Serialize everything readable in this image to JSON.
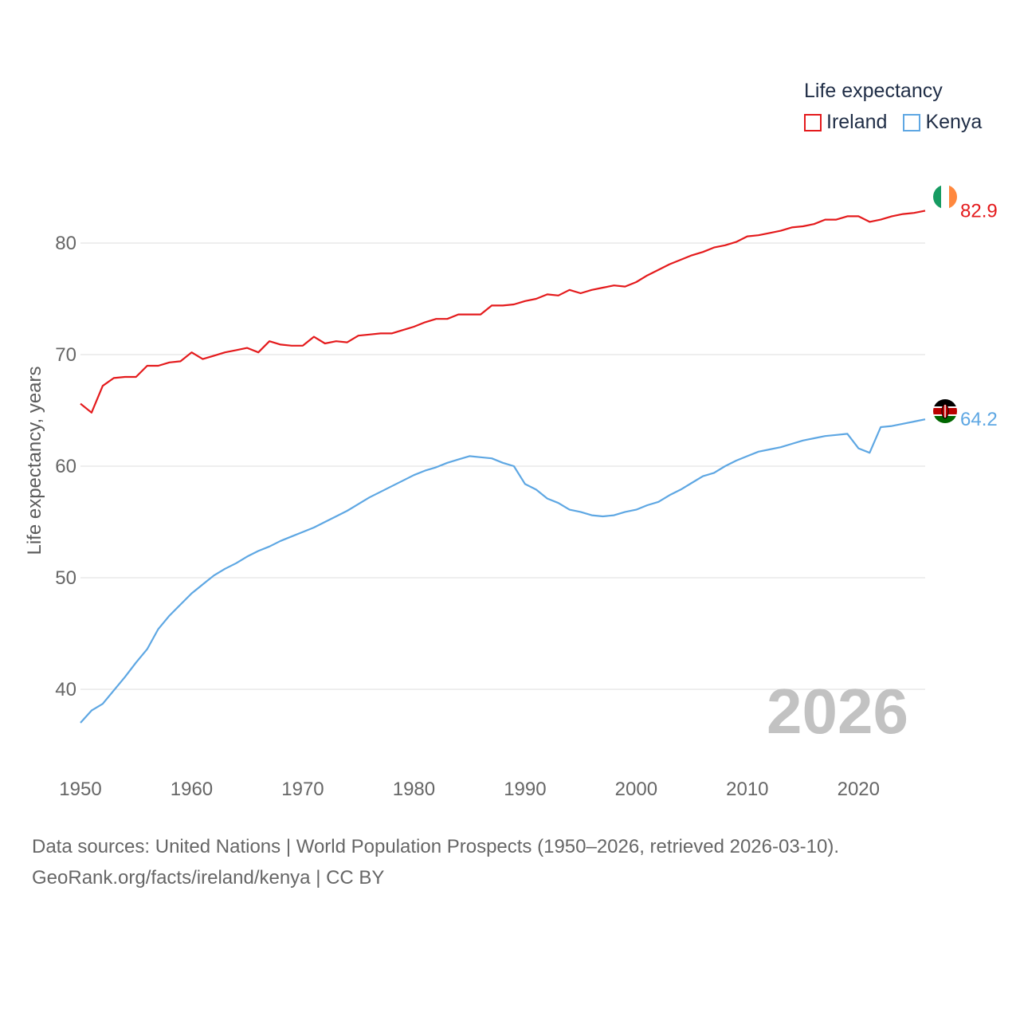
{
  "legend": {
    "title": "Life expectancy",
    "items": [
      {
        "label": "Ireland",
        "color": "#e41a1c"
      },
      {
        "label": "Kenya",
        "color": "#5ea7e3"
      }
    ]
  },
  "source": {
    "line1": "Data sources: United Nations | World Population Prospects (1950–2026, retrieved 2026-03-10).",
    "line2": "GeoRank.org/facts/ireland/kenya | CC BY"
  },
  "chart_data": {
    "type": "line",
    "title": "Life expectancy",
    "xlabel": "",
    "ylabel": "Life expectancy, years",
    "xlim": [
      1950,
      2026
    ],
    "ylim": [
      35,
      85
    ],
    "xticks": [
      "1950",
      "1960",
      "1970",
      "1980",
      "1990",
      "2000",
      "2010",
      "2020"
    ],
    "yticks": [
      "40",
      "50",
      "60",
      "70",
      "80"
    ],
    "grid": true,
    "year_label": "2026",
    "x": [
      1950,
      1951,
      1952,
      1953,
      1954,
      1955,
      1956,
      1957,
      1958,
      1959,
      1960,
      1961,
      1962,
      1963,
      1964,
      1965,
      1966,
      1967,
      1968,
      1969,
      1970,
      1971,
      1972,
      1973,
      1974,
      1975,
      1976,
      1977,
      1978,
      1979,
      1980,
      1981,
      1982,
      1983,
      1984,
      1985,
      1986,
      1987,
      1988,
      1989,
      1990,
      1991,
      1992,
      1993,
      1994,
      1995,
      1996,
      1997,
      1998,
      1999,
      2000,
      2001,
      2002,
      2003,
      2004,
      2005,
      2006,
      2007,
      2008,
      2009,
      2010,
      2011,
      2012,
      2013,
      2014,
      2015,
      2016,
      2017,
      2018,
      2019,
      2020,
      2021,
      2022,
      2023,
      2024,
      2025,
      2026
    ],
    "series": [
      {
        "name": "Ireland",
        "color": "#e41a1c",
        "end_label": "82.9",
        "values": [
          65.6,
          64.8,
          67.2,
          67.9,
          68.0,
          68.0,
          69.0,
          69.0,
          69.3,
          69.4,
          70.2,
          69.6,
          69.9,
          70.2,
          70.4,
          70.6,
          70.2,
          71.2,
          70.9,
          70.8,
          70.8,
          71.6,
          71.0,
          71.2,
          71.1,
          71.7,
          71.8,
          71.9,
          71.9,
          72.2,
          72.5,
          72.9,
          73.2,
          73.2,
          73.6,
          73.6,
          73.6,
          74.4,
          74.4,
          74.5,
          74.8,
          75.0,
          75.4,
          75.3,
          75.8,
          75.5,
          75.8,
          76.0,
          76.2,
          76.1,
          76.5,
          77.1,
          77.6,
          78.1,
          78.5,
          78.9,
          79.2,
          79.6,
          79.8,
          80.1,
          80.6,
          80.7,
          80.9,
          81.1,
          81.4,
          81.5,
          81.7,
          82.1,
          82.1,
          82.4,
          82.4,
          81.9,
          82.1,
          82.4,
          82.6,
          82.7,
          82.9
        ]
      },
      {
        "name": "Kenya",
        "color": "#5ea7e3",
        "end_label": "64.2",
        "values": [
          37.0,
          38.1,
          38.7,
          39.9,
          41.1,
          42.4,
          43.6,
          45.4,
          46.6,
          47.6,
          48.6,
          49.4,
          50.2,
          50.8,
          51.3,
          51.9,
          52.4,
          52.8,
          53.3,
          53.7,
          54.1,
          54.5,
          55.0,
          55.5,
          56.0,
          56.6,
          57.2,
          57.7,
          58.2,
          58.7,
          59.2,
          59.6,
          59.9,
          60.3,
          60.6,
          60.9,
          60.8,
          60.7,
          60.3,
          60.0,
          58.4,
          57.9,
          57.1,
          56.7,
          56.1,
          55.9,
          55.6,
          55.5,
          55.6,
          55.9,
          56.1,
          56.5,
          56.8,
          57.4,
          57.9,
          58.5,
          59.1,
          59.4,
          60.0,
          60.5,
          60.9,
          61.3,
          61.5,
          61.7,
          62.0,
          62.3,
          62.5,
          62.7,
          62.8,
          62.9,
          61.6,
          61.2,
          63.5,
          63.6,
          63.8,
          64.0,
          64.2
        ]
      }
    ]
  }
}
